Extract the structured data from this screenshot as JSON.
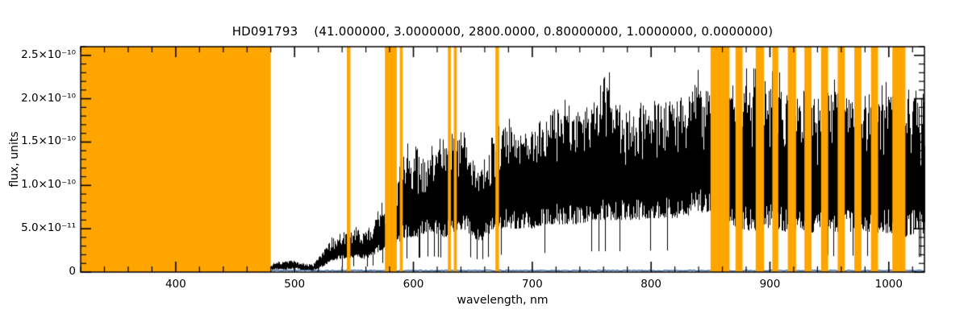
{
  "chart_data": {
    "type": "line",
    "title": "HD091793    (41.000000, 3.0000000, 2800.0000, 0.80000000, 1.0000000, 0.0000000)",
    "xlabel": "wavelength, nm",
    "ylabel": "flux, units",
    "xlim": [
      320,
      1030
    ],
    "ylim_e10": [
      0,
      2.6
    ],
    "x_major_ticks": [
      400,
      500,
      600,
      700,
      800,
      900,
      1000
    ],
    "x_minor_step": 20,
    "y_major_ticks_e10": [
      0,
      0.5,
      1.0,
      1.5,
      2.0,
      2.5
    ],
    "y_tick_labels": [
      "0",
      "5.0×10⁻¹¹",
      "1.0×10⁻¹⁰",
      "1.5×10⁻¹⁰",
      "2.0×10⁻¹⁰",
      "2.5×10⁻¹⁰"
    ],
    "y_minor_step_e10": 0.1,
    "grid": false,
    "legend": null,
    "colors": {
      "masked_band": "#FFA500",
      "spectrum": "#000000",
      "error_line": "#3465a4",
      "axis": "#000000",
      "background": "#ffffff"
    },
    "masked_bands_nm": [
      [
        320,
        480
      ],
      [
        544,
        547
      ],
      [
        576,
        586
      ],
      [
        588.5,
        591
      ],
      [
        629,
        631.5
      ],
      [
        634,
        636.5
      ],
      [
        669,
        672
      ],
      [
        850,
        866
      ],
      [
        871,
        877
      ],
      [
        888,
        895
      ],
      [
        902,
        907
      ],
      [
        915,
        922
      ],
      [
        929,
        935
      ],
      [
        943,
        949
      ],
      [
        957,
        963
      ],
      [
        971,
        977
      ],
      [
        985,
        991
      ],
      [
        1003,
        1014
      ]
    ],
    "spectrum_range_nm": [
      480,
      1030
    ],
    "spectrum_envelope_e10": [
      [
        480,
        0.03,
        0.1
      ],
      [
        490,
        0.03,
        0.12
      ],
      [
        500,
        0.04,
        0.14
      ],
      [
        508,
        0.02,
        0.1
      ],
      [
        515,
        0.02,
        0.09
      ],
      [
        522,
        0.05,
        0.2
      ],
      [
        530,
        0.12,
        0.38
      ],
      [
        538,
        0.15,
        0.42
      ],
      [
        545,
        0.15,
        0.45
      ],
      [
        552,
        0.18,
        0.5
      ],
      [
        558,
        0.15,
        0.48
      ],
      [
        565,
        0.18,
        0.6
      ],
      [
        572,
        0.25,
        0.75
      ],
      [
        580,
        0.3,
        0.95
      ],
      [
        588,
        0.35,
        1.3
      ],
      [
        595,
        0.4,
        1.4
      ],
      [
        602,
        0.4,
        1.45
      ],
      [
        610,
        0.45,
        1.3
      ],
      [
        618,
        0.45,
        1.4
      ],
      [
        626,
        0.4,
        1.5
      ],
      [
        634,
        0.45,
        1.55
      ],
      [
        642,
        0.5,
        1.6
      ],
      [
        650,
        0.4,
        1.3
      ],
      [
        656,
        0.35,
        1.2
      ],
      [
        664,
        0.45,
        1.5
      ],
      [
        672,
        0.5,
        1.7
      ],
      [
        680,
        0.5,
        1.8
      ],
      [
        690,
        0.5,
        1.6
      ],
      [
        700,
        0.5,
        1.65
      ],
      [
        710,
        0.55,
        1.8
      ],
      [
        720,
        0.55,
        1.95
      ],
      [
        730,
        0.55,
        1.85
      ],
      [
        740,
        0.55,
        1.9
      ],
      [
        750,
        0.6,
        1.95
      ],
      [
        760,
        0.6,
        2.25
      ],
      [
        770,
        0.6,
        2.0
      ],
      [
        780,
        0.6,
        1.85
      ],
      [
        790,
        0.6,
        1.95
      ],
      [
        800,
        0.62,
        2.0
      ],
      [
        810,
        0.62,
        1.95
      ],
      [
        820,
        0.62,
        2.0
      ],
      [
        830,
        0.65,
        2.1
      ],
      [
        840,
        0.68,
        2.2
      ],
      [
        850,
        0.7,
        2.05
      ],
      [
        858,
        0.6,
        2.1
      ],
      [
        866,
        0.55,
        2.2
      ],
      [
        875,
        0.5,
        2.25
      ],
      [
        885,
        0.45,
        2.2
      ],
      [
        895,
        0.5,
        2.15
      ],
      [
        905,
        0.5,
        2.2
      ],
      [
        915,
        0.45,
        2.1
      ],
      [
        925,
        0.5,
        2.15
      ],
      [
        935,
        0.45,
        2.05
      ],
      [
        945,
        0.5,
        2.1
      ],
      [
        955,
        0.45,
        2.15
      ],
      [
        965,
        0.45,
        2.05
      ],
      [
        975,
        0.5,
        2.1
      ],
      [
        985,
        0.45,
        2.05
      ],
      [
        995,
        0.45,
        2.1
      ],
      [
        1005,
        0.45,
        2.05
      ],
      [
        1015,
        0.4,
        2.1
      ],
      [
        1030,
        0.45,
        2.05
      ]
    ],
    "error_spectrum_e10": {
      "level": 0.018,
      "jitter": 0.012
    },
    "noise_seed": 1234
  }
}
